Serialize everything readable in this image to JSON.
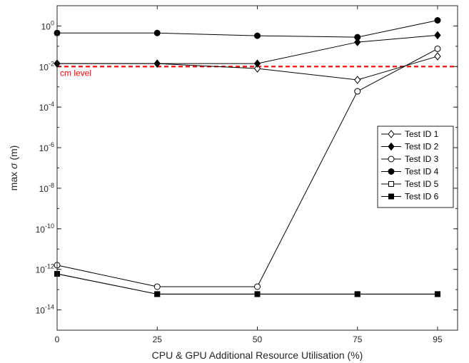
{
  "chart_data": {
    "type": "line",
    "title": "",
    "xlabel": "CPU & GPU Additional Resource Utilisation (%)",
    "ylabel_prefix": "max",
    "ylabel_symbol": "σ",
    "ylabel_suffix": "(m)",
    "x": [
      0,
      25,
      50,
      75,
      95
    ],
    "x_ticks": [
      "0",
      "25",
      "50",
      "75",
      "95"
    ],
    "xlim": [
      0,
      100
    ],
    "yscale": "log",
    "ylim": [
      1e-15,
      10
    ],
    "y_ticks": [
      {
        "exp": -14,
        "base": "10",
        "power": "-14"
      },
      {
        "exp": -12,
        "base": "10",
        "power": "-12"
      },
      {
        "exp": -10,
        "base": "10",
        "power": "-10"
      },
      {
        "exp": -8,
        "base": "10",
        "power": "-8"
      },
      {
        "exp": -6,
        "base": "10",
        "power": "-6"
      },
      {
        "exp": -4,
        "base": "10",
        "power": "-4"
      },
      {
        "exp": -2,
        "base": "10",
        "power": "-2"
      },
      {
        "exp": 0,
        "base": "10",
        "power": "0"
      }
    ],
    "grid": false,
    "legend_position": "right-middle",
    "series": [
      {
        "name": "Test ID 1",
        "marker": "diamond",
        "filled": false,
        "values": [
          0.014,
          0.014,
          0.008,
          0.0022,
          0.032
        ]
      },
      {
        "name": "Test ID 2",
        "marker": "diamond",
        "filled": true,
        "values": [
          0.014,
          0.014,
          0.014,
          0.16,
          0.35
        ]
      },
      {
        "name": "Test ID 3",
        "marker": "circle",
        "filled": false,
        "values": [
          1.6e-12,
          1.4e-13,
          1.4e-13,
          0.0006,
          0.075
        ]
      },
      {
        "name": "Test ID 4",
        "marker": "circle",
        "filled": true,
        "values": [
          0.45,
          0.45,
          0.33,
          0.28,
          1.9
        ]
      },
      {
        "name": "Test ID 5",
        "marker": "square",
        "filled": false,
        "values": [
          6e-13,
          6e-14,
          6e-14,
          6e-14,
          6e-14
        ]
      },
      {
        "name": "Test ID 6",
        "marker": "square",
        "filled": true,
        "values": [
          6e-13,
          6e-14,
          6e-14,
          6e-14,
          6e-14
        ]
      }
    ],
    "reference_line": {
      "label": "cm level",
      "value": 0.01,
      "color": "#ff0000",
      "style": "dashed"
    }
  }
}
